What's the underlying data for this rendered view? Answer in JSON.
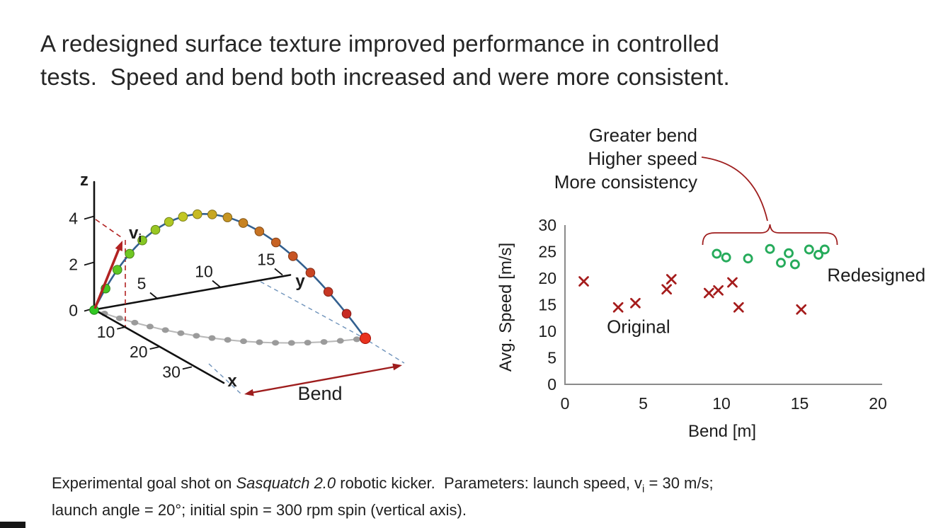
{
  "title": {
    "line1": "A redesigned surface texture improved performance in controlled",
    "line2": "tests.  Speed and bend both increased and were more consistent."
  },
  "colors": {
    "dark_red": "#9e1d1d",
    "arrow_red": "#b22222",
    "landing_red": "#e8321e",
    "original_marker": "#a51c1c",
    "redesigned_marker": "#26ab5b",
    "trajectory_line": "#33608f",
    "shadow_gray": "#9b9b9b",
    "dashed_blue": "#6f93bb",
    "axis_gray": "#8a8a8a",
    "text_dark": "#1d1d1d"
  },
  "chart_data": [
    {
      "id": "trajectory-3d",
      "type": "line",
      "title": "",
      "description": "3D trajectory of kicked ball showing height arc, ground shadow and lateral bend",
      "axes": {
        "z": {
          "label": "z",
          "ticks": [
            "0",
            "2",
            "4"
          ]
        },
        "y": {
          "label": "y",
          "ticks": [
            "5",
            "10",
            "15"
          ]
        },
        "x": {
          "label": "x",
          "ticks": [
            "10",
            "20",
            "30"
          ]
        }
      },
      "annotations": {
        "vi_label": "v",
        "vi_sub": "i",
        "bend_label": "Bend"
      },
      "series": [
        {
          "name": "trajectory",
          "n_points": 19,
          "apex_z": 4,
          "color_ramp": "green-to-red"
        },
        {
          "name": "ground-shadow",
          "n_points": 17,
          "style": "gray-dotted"
        }
      ]
    },
    {
      "id": "speed-vs-bend",
      "type": "scatter",
      "xlabel": "Bend [m]",
      "ylabel": "Avg. Speed [m/s]",
      "xlim": [
        0,
        20
      ],
      "ylim": [
        0,
        30
      ],
      "xticks": [
        "0",
        "5",
        "10",
        "15",
        "20"
      ],
      "yticks": [
        "0",
        "5",
        "10",
        "15",
        "20",
        "25",
        "30"
      ],
      "grid": false,
      "legend_position": "inline-labels",
      "series": [
        {
          "name": "Original",
          "marker": "x",
          "color": "#a51c1c",
          "label_pos": {
            "x": 4.7,
            "y": 10.9
          },
          "points": [
            [
              1.2,
              19.4
            ],
            [
              3.4,
              14.5
            ],
            [
              4.5,
              15.3
            ],
            [
              6.5,
              17.9
            ],
            [
              6.8,
              19.8
            ],
            [
              9.2,
              17.2
            ],
            [
              9.8,
              17.7
            ],
            [
              10.7,
              19.2
            ],
            [
              11.1,
              14.5
            ],
            [
              15.1,
              14.1
            ]
          ]
        },
        {
          "name": "Redesigned",
          "marker": "o",
          "color": "#26ab5b",
          "label_pos": {
            "x": 19.9,
            "y": 20.6
          },
          "points": [
            [
              9.7,
              24.6
            ],
            [
              10.3,
              23.9
            ],
            [
              11.7,
              23.7
            ],
            [
              13.1,
              25.5
            ],
            [
              13.8,
              22.9
            ],
            [
              14.3,
              24.7
            ],
            [
              14.7,
              22.6
            ],
            [
              15.6,
              25.4
            ],
            [
              16.2,
              24.4
            ],
            [
              16.6,
              25.4
            ]
          ]
        }
      ],
      "annotation": {
        "lines": [
          "Greater bend",
          "Higher speed",
          "More consistency"
        ],
        "brace_from_m": 8.8,
        "brace_to_m": 17.4
      }
    }
  ],
  "caption": {
    "l1a": "Experimental goal shot on ",
    "l1b_italic": "Sasquatch 2.0",
    "l1c": " robotic kicker.  Parameters: launch speed, v",
    "l1d_sub": "i",
    "l1e": " = 30 m/s;",
    "l2": "launch angle = 20°; initial spin = 300 rpm spin (vertical axis)."
  }
}
